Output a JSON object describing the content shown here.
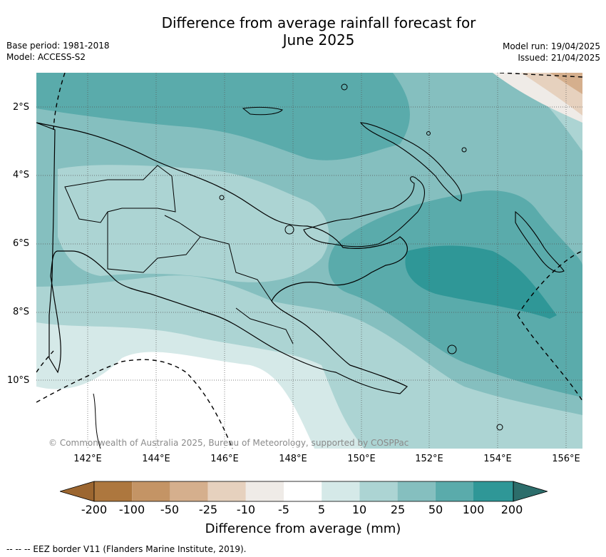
{
  "title_line1": "Difference from average rainfall forecast for",
  "title_line2": "June 2025",
  "base_period": "Base period: 1981-2018",
  "model": "Model: ACCESS-S2",
  "model_run": "Model run: 19/04/2025",
  "issued": "Issued: 21/04/2025",
  "lat_labels": [
    "2°S",
    "4°S",
    "6°S",
    "8°S",
    "10°S"
  ],
  "lon_labels": [
    "142°E",
    "144°E",
    "146°E",
    "148°E",
    "150°E",
    "152°E",
    "154°E",
    "156°E"
  ],
  "copyright": "© Commonwealth of Australia 2025, Bureau of Meteorology, supported by COSPPac",
  "colorbar": {
    "label": "Difference from average (mm)",
    "ticks": [
      "-200",
      "-100",
      "-50",
      "-25",
      "-10",
      "-5",
      "5",
      "10",
      "25",
      "50",
      "100",
      "200"
    ],
    "colors": [
      "#9c6630",
      "#ad773e",
      "#c49465",
      "#d5af8d",
      "#e6d1be",
      "#efebe7",
      "#ffffff",
      "#d5e9e8",
      "#acd4d3",
      "#85bfbf",
      "#5aabab",
      "#2f9797",
      "#2c6d6b"
    ]
  },
  "eez_note": "--  --  -- EEZ border V11 (Flanders Marine Institute, 2019)."
}
